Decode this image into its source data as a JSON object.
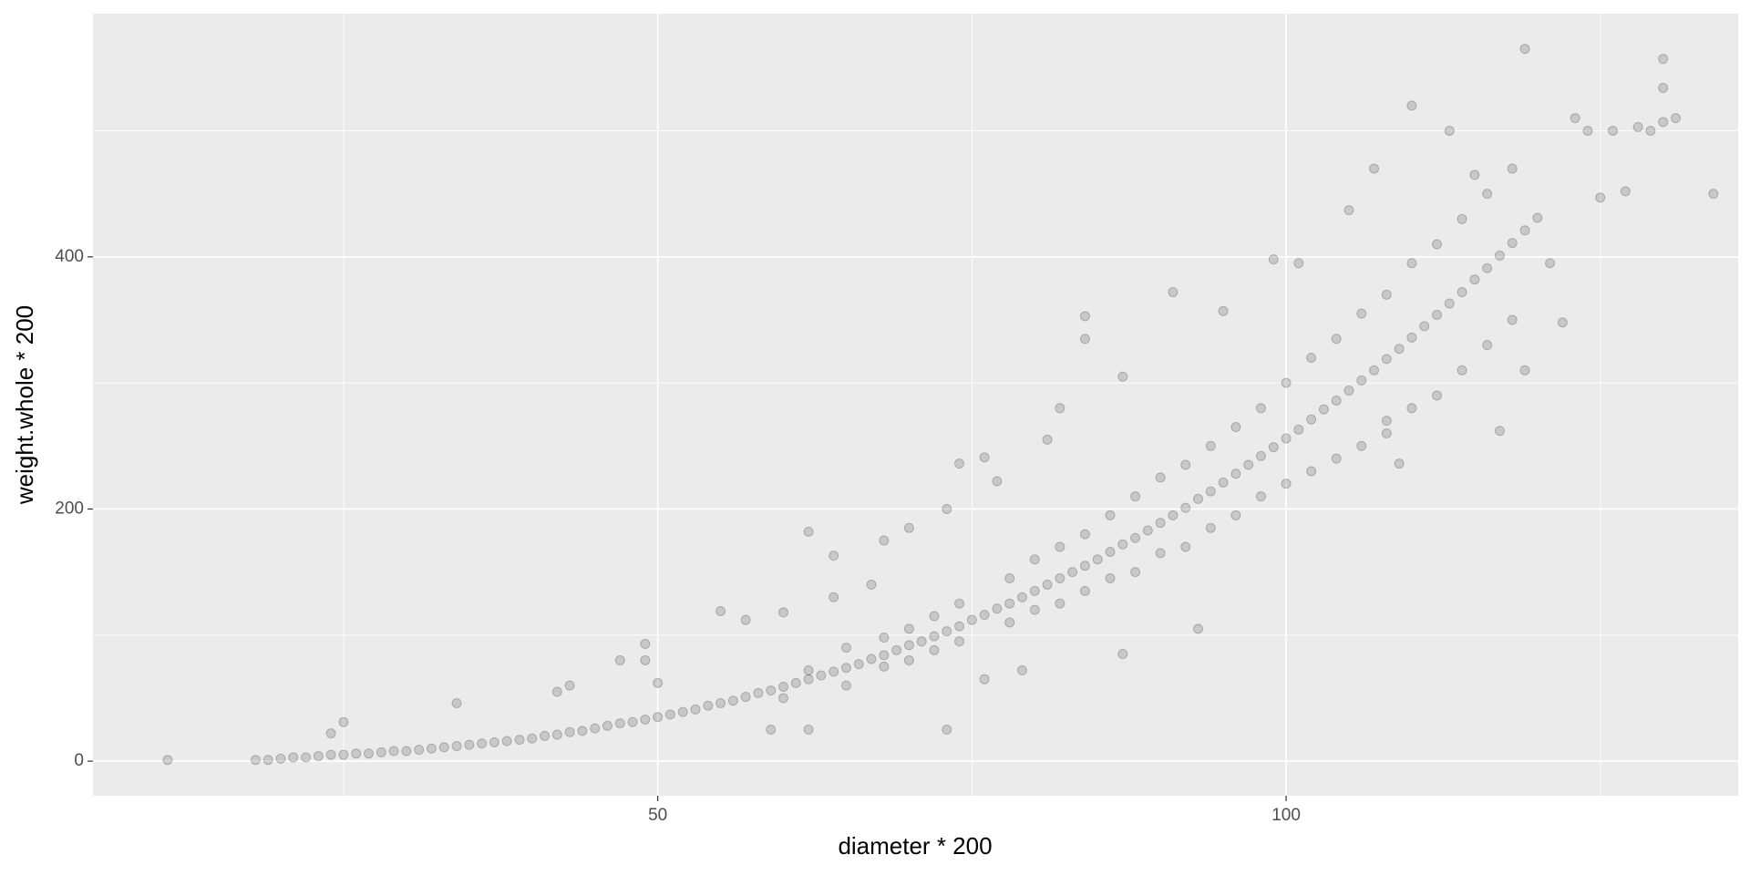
{
  "chart_data": {
    "type": "scatter",
    "x_label": "diameter * 200",
    "y_label": "weight.whole * 200",
    "color": "#000000",
    "alpha": 0.15,
    "grid": true,
    "xlim": [
      5.06,
      135.97
    ],
    "ylim": [
      -27.4,
      592.9
    ],
    "xticks": [
      50,
      100
    ],
    "yticks": [
      0,
      200,
      400
    ],
    "x": [
      11,
      18,
      19,
      20,
      21,
      22,
      23,
      24,
      25,
      26,
      27,
      28,
      29,
      30,
      31,
      32,
      33,
      34,
      35,
      36,
      37,
      38,
      39,
      40,
      41,
      42,
      43,
      44,
      45,
      46,
      47,
      48,
      49,
      50,
      51,
      52,
      53,
      54,
      55,
      56,
      57,
      58,
      59,
      60,
      61,
      62,
      63,
      64,
      65,
      66,
      67,
      68,
      69,
      70,
      71,
      72,
      73,
      74,
      75,
      60,
      62,
      65,
      65,
      68,
      68,
      70,
      70,
      72,
      72,
      74,
      74,
      76,
      77,
      78,
      79,
      80,
      81,
      82,
      83,
      84,
      85,
      86,
      87,
      88,
      89,
      90,
      91,
      92,
      93,
      94,
      95,
      96,
      97,
      98,
      99,
      100,
      101,
      102,
      103,
      104,
      105,
      106,
      107,
      108,
      109,
      110,
      111,
      112,
      113,
      114,
      115,
      116,
      117,
      118,
      119,
      120,
      78,
      78,
      80,
      80,
      82,
      82,
      84,
      84,
      86,
      86,
      88,
      88,
      90,
      90,
      92,
      92,
      94,
      94,
      96,
      96,
      98,
      98,
      100,
      100,
      102,
      102,
      104,
      104,
      106,
      106,
      108,
      108,
      110,
      110,
      112,
      112,
      114,
      114,
      116,
      116,
      118,
      118,
      24,
      25,
      34,
      42,
      43,
      47,
      49,
      49,
      50,
      55,
      57,
      59,
      60,
      62,
      62,
      64,
      64,
      67,
      68,
      70,
      73,
      73,
      74,
      76,
      76,
      77,
      79,
      81,
      82,
      84,
      84,
      87,
      87,
      91,
      93,
      95,
      99,
      101,
      105,
      107,
      108,
      109,
      110,
      113,
      115,
      117,
      119,
      121,
      122,
      123,
      124,
      125,
      126,
      127,
      128,
      129,
      130,
      130,
      130,
      131,
      134,
      119
    ],
    "values": [
      1,
      1,
      1,
      2,
      3,
      3,
      4,
      5,
      5,
      6,
      6,
      7,
      8,
      8,
      9,
      10,
      11,
      12,
      13,
      14,
      15,
      16,
      17,
      18,
      20,
      21,
      23,
      24,
      26,
      28,
      30,
      31,
      33,
      35,
      37,
      39,
      41,
      44,
      46,
      48,
      51,
      54,
      56,
      59,
      62,
      65,
      68,
      71,
      74,
      77,
      81,
      84,
      88,
      92,
      95,
      99,
      103,
      107,
      112,
      50,
      72,
      60,
      90,
      75,
      98,
      80,
      105,
      88,
      115,
      95,
      125,
      116,
      121,
      125,
      130,
      135,
      140,
      145,
      150,
      155,
      160,
      166,
      172,
      177,
      183,
      189,
      195,
      201,
      208,
      214,
      221,
      228,
      235,
      242,
      249,
      256,
      263,
      271,
      279,
      286,
      294,
      302,
      310,
      319,
      327,
      336,
      345,
      354,
      363,
      372,
      382,
      391,
      401,
      411,
      421,
      431,
      110,
      145,
      120,
      160,
      125,
      170,
      135,
      180,
      145,
      195,
      150,
      210,
      165,
      225,
      170,
      235,
      185,
      250,
      195,
      265,
      210,
      280,
      220,
      300,
      230,
      320,
      240,
      335,
      250,
      355,
      260,
      370,
      280,
      395,
      290,
      410,
      310,
      430,
      330,
      450,
      350,
      470,
      22,
      31,
      46,
      55,
      60,
      80,
      93,
      80,
      62,
      119,
      112,
      25,
      118,
      182,
      25,
      163,
      130,
      140,
      175,
      185,
      25,
      200,
      236,
      241,
      65,
      222,
      72,
      255,
      280,
      353,
      335,
      305,
      85,
      372,
      105,
      357,
      398,
      395,
      437,
      470,
      270,
      236,
      520,
      500,
      465,
      262,
      310,
      395,
      348,
      510,
      500,
      447,
      500,
      452,
      503,
      500,
      557,
      534,
      507,
      510,
      450,
      565
    ]
  }
}
